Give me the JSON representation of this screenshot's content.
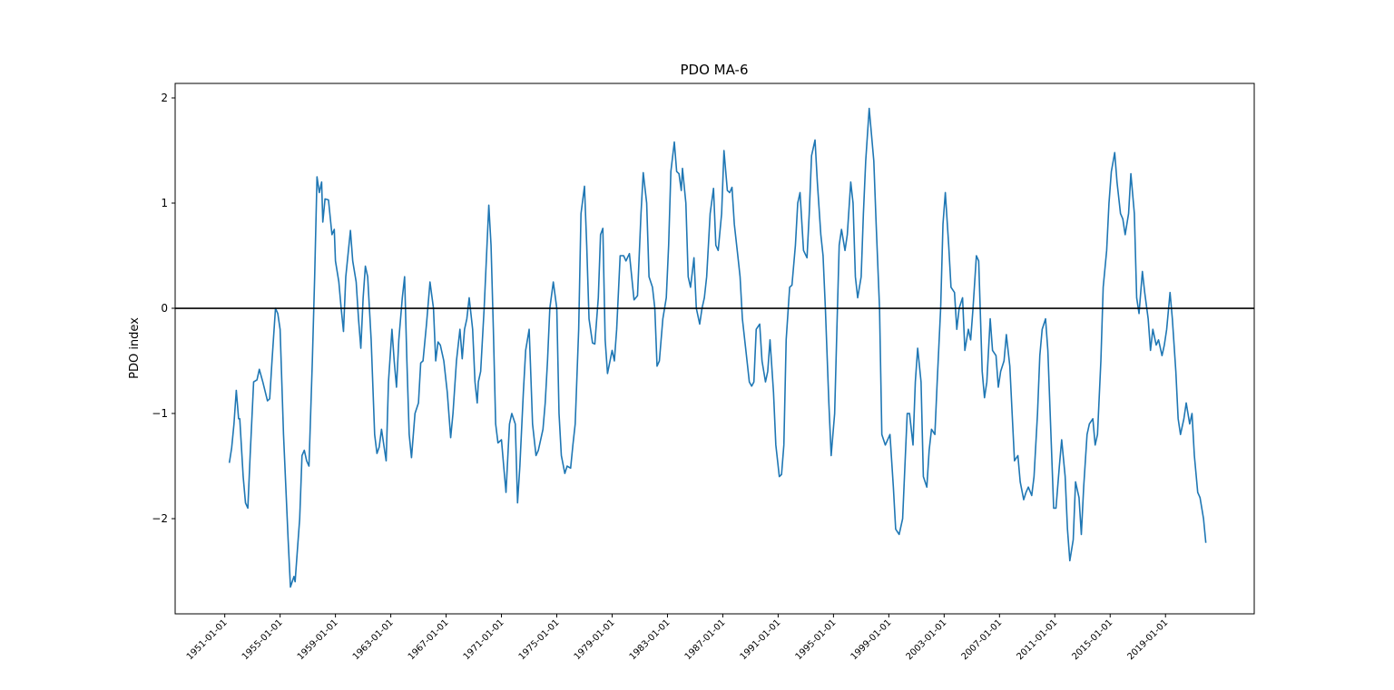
{
  "chart_data": {
    "type": "line",
    "title": "PDO MA-6",
    "y_label": "PDO index",
    "color": "#1f77b4",
    "hline": {
      "value": 0,
      "color": "#000000"
    },
    "xlim": [
      "1947-06-01",
      "2025-06-01"
    ],
    "ylim": [
      -2.905,
      2.138
    ],
    "xticks": [
      "1951-01-01",
      "1955-01-01",
      "1959-01-01",
      "1963-01-01",
      "1967-01-01",
      "1971-01-01",
      "1975-01-01",
      "1979-01-01",
      "1983-01-01",
      "1987-01-01",
      "1991-01-01",
      "1995-01-01",
      "1999-01-01",
      "2003-01-01",
      "2007-01-01",
      "2011-01-01",
      "2015-01-01",
      "2019-01-01"
    ],
    "yticks": [
      {
        "value": -2,
        "label": "−2"
      },
      {
        "value": -1,
        "label": "−1"
      },
      0,
      1,
      2
    ],
    "x": [
      "1951-05-01",
      "1951-07-01",
      "1951-09-01",
      "1951-11-01",
      "1952-01-01",
      "1952-02-01",
      "1952-05-01",
      "1952-07-01",
      "1952-09-01",
      "1952-11-01",
      "1953-02-01",
      "1953-05-01",
      "1953-07-01",
      "1953-10-01",
      "1954-02-01",
      "1954-04-01",
      "1954-06-01",
      "1954-09-01",
      "1954-11-01",
      "1955-01-01",
      "1955-04-01",
      "1955-08-01",
      "1955-10-01",
      "1956-01-01",
      "1956-02-01",
      "1956-04-01",
      "1956-06-01",
      "1956-08-01",
      "1956-10-01",
      "1956-12-01",
      "1957-02-01",
      "1957-05-01",
      "1957-07-01",
      "1957-09-01",
      "1957-11-01",
      "1958-01-01",
      "1958-02-01",
      "1958-04-01",
      "1958-07-01",
      "1958-10-01",
      "1958-12-01",
      "1959-01-01",
      "1959-04-01",
      "1959-06-01",
      "1959-08-01",
      "1959-10-01",
      "1960-02-01",
      "1960-04-01",
      "1960-07-01",
      "1960-09-01",
      "1960-11-01",
      "1961-01-01",
      "1961-03-01",
      "1961-05-01",
      "1961-08-01",
      "1961-11-01",
      "1962-01-01",
      "1962-03-01",
      "1962-05-01",
      "1962-07-01",
      "1962-09-01",
      "1962-11-01",
      "1963-02-01",
      "1963-04-01",
      "1963-06-01",
      "1963-08-01",
      "1963-11-01",
      "1964-01-01",
      "1964-03-01",
      "1964-05-01",
      "1964-07-01",
      "1964-10-01",
      "1965-01-01",
      "1965-03-01",
      "1965-05-01",
      "1965-08-01",
      "1965-11-01",
      "1966-02-01",
      "1966-04-01",
      "1966-06-01",
      "1966-08-01",
      "1966-11-01",
      "1967-02-01",
      "1967-05-01",
      "1967-07-01",
      "1967-10-01",
      "1968-01-01",
      "1968-03-01",
      "1968-05-01",
      "1968-07-01",
      "1968-09-01",
      "1968-12-01",
      "1969-02-01",
      "1969-04-01",
      "1969-05-01",
      "1969-07-01",
      "1969-10-01",
      "1970-02-01",
      "1970-04-01",
      "1970-06-01",
      "1970-08-01",
      "1970-10-01",
      "1971-01-01",
      "1971-03-01",
      "1971-05-01",
      "1971-08-01",
      "1971-10-01",
      "1972-01-01",
      "1972-03-01",
      "1972-05-01",
      "1972-08-01",
      "1972-10-01",
      "1973-01-01",
      "1973-02-01",
      "1973-04-01",
      "1973-07-01",
      "1973-09-01",
      "1974-01-01",
      "1974-03-01",
      "1974-05-01",
      "1974-07-01",
      "1974-10-01",
      "1975-01-01",
      "1975-03-01",
      "1975-05-01",
      "1975-08-01",
      "1975-10-01",
      "1976-01-01",
      "1976-03-01",
      "1976-05-01",
      "1976-08-01",
      "1976-10-01",
      "1977-01-01",
      "1977-03-01",
      "1977-05-01",
      "1977-08-01",
      "1977-10-01",
      "1978-01-01",
      "1978-03-01",
      "1978-05-01",
      "1978-07-01",
      "1978-09-01",
      "1979-01-01",
      "1979-03-01",
      "1979-05-01",
      "1979-08-01",
      "1979-11-01",
      "1980-01-01",
      "1980-04-01",
      "1980-06-01",
      "1980-08-01",
      "1980-11-01",
      "1981-02-01",
      "1981-04-01",
      "1981-07-01",
      "1981-09-01",
      "1981-12-01",
      "1982-02-01",
      "1982-04-01",
      "1982-06-01",
      "1982-09-01",
      "1982-12-01",
      "1983-02-01",
      "1983-04-01",
      "1983-07-01",
      "1983-09-01",
      "1983-11-01",
      "1984-01-01",
      "1984-02-01",
      "1984-05-01",
      "1984-07-01",
      "1984-09-01",
      "1984-12-01",
      "1985-02-01",
      "1985-05-01",
      "1985-07-01",
      "1985-09-01",
      "1985-11-01",
      "1986-02-01",
      "1986-05-01",
      "1986-07-01",
      "1986-09-01",
      "1986-12-01",
      "1987-02-01",
      "1987-05-01",
      "1987-07-01",
      "1987-09-01",
      "1987-11-01",
      "1988-02-01",
      "1988-04-01",
      "1988-06-01",
      "1988-09-01",
      "1988-12-01",
      "1989-02-01",
      "1989-04-01",
      "1989-06-01",
      "1989-09-01",
      "1989-11-01",
      "1990-02-01",
      "1990-04-01",
      "1990-06-01",
      "1990-09-01",
      "1990-11-01",
      "1991-02-01",
      "1991-04-01",
      "1991-06-01",
      "1991-08-01",
      "1991-11-01",
      "1992-01-01",
      "1992-04-01",
      "1992-06-01",
      "1992-08-01",
      "1992-11-01",
      "1993-02-01",
      "1993-04-01",
      "1993-06-01",
      "1993-09-01",
      "1993-11-01",
      "1994-02-01",
      "1994-04-01",
      "1994-06-01",
      "1994-09-01",
      "1994-11-01",
      "1995-02-01",
      "1995-04-01",
      "1995-06-01",
      "1995-08-01",
      "1995-11-01",
      "1996-01-01",
      "1996-04-01",
      "1996-06-01",
      "1996-08-01",
      "1996-10-01",
      "1997-01-01",
      "1997-03-01",
      "1997-05-01",
      "1997-08-01",
      "1997-10-01",
      "1997-12-01",
      "1998-02-01",
      "1998-05-01",
      "1998-07-01",
      "1998-10-01",
      "1998-12-01",
      "1999-02-01",
      "1999-05-01",
      "1999-07-01",
      "1999-10-01",
      "2000-01-01",
      "2000-03-01",
      "2000-05-01",
      "2000-07-01",
      "2000-10-01",
      "2000-12-01",
      "2001-02-01",
      "2001-05-01",
      "2001-07-01",
      "2001-10-01",
      "2001-12-01",
      "2002-02-01",
      "2002-05-01",
      "2002-07-01",
      "2002-10-01",
      "2002-12-01",
      "2003-02-01",
      "2003-05-01",
      "2003-07-01",
      "2003-10-01",
      "2003-12-01",
      "2004-02-01",
      "2004-05-01",
      "2004-07-01",
      "2004-10-01",
      "2004-12-01",
      "2005-02-01",
      "2005-05-01",
      "2005-07-01",
      "2005-10-01",
      "2005-12-01",
      "2006-02-01",
      "2006-05-01",
      "2006-07-01",
      "2006-10-01",
      "2006-12-01",
      "2007-02-01",
      "2007-05-01",
      "2007-07-01",
      "2007-10-01",
      "2007-12-01",
      "2008-02-01",
      "2008-05-01",
      "2008-07-01",
      "2008-10-01",
      "2008-12-01",
      "2009-02-01",
      "2009-05-01",
      "2009-07-01",
      "2009-10-01",
      "2009-12-01",
      "2010-02-01",
      "2010-05-01",
      "2010-07-01",
      "2010-10-01",
      "2010-12-01",
      "2011-02-01",
      "2011-05-01",
      "2011-07-01",
      "2011-10-01",
      "2011-12-01",
      "2012-02-01",
      "2012-05-01",
      "2012-07-01",
      "2012-10-01",
      "2012-12-01",
      "2013-02-01",
      "2013-05-01",
      "2013-07-01",
      "2013-10-01",
      "2013-12-01",
      "2014-02-01",
      "2014-05-01",
      "2014-07-01",
      "2014-10-01",
      "2014-12-01",
      "2015-02-01",
      "2015-05-01",
      "2015-07-01",
      "2015-10-01",
      "2015-12-01",
      "2016-02-01",
      "2016-05-01",
      "2016-07-01",
      "2016-10-01",
      "2016-12-01",
      "2017-02-01",
      "2017-05-01",
      "2017-07-01",
      "2017-10-01",
      "2017-12-01",
      "2018-02-01",
      "2018-05-01",
      "2018-07-01",
      "2018-10-01",
      "2018-12-01",
      "2019-02-01",
      "2019-05-01",
      "2019-07-01",
      "2019-10-01",
      "2019-12-01",
      "2020-02-01",
      "2020-05-01",
      "2020-07-01",
      "2020-10-01",
      "2020-12-01",
      "2021-02-01",
      "2021-05-01",
      "2021-07-01",
      "2021-10-01",
      "2021-12-01"
    ],
    "values": [
      -1.47,
      -1.33,
      -1.1,
      -0.78,
      -1.05,
      -1.05,
      -1.6,
      -1.85,
      -1.9,
      -1.4,
      -0.7,
      -0.68,
      -0.58,
      -0.7,
      -0.88,
      -0.86,
      -0.5,
      0.0,
      -0.05,
      -0.2,
      -1.2,
      -2.2,
      -2.65,
      -2.55,
      -2.6,
      -2.3,
      -2.0,
      -1.4,
      -1.35,
      -1.45,
      -1.5,
      -0.5,
      0.3,
      1.25,
      1.1,
      1.2,
      0.82,
      1.04,
      1.03,
      0.7,
      0.75,
      0.45,
      0.25,
      0.0,
      -0.22,
      0.3,
      0.74,
      0.45,
      0.25,
      -0.1,
      -0.38,
      0.1,
      0.4,
      0.3,
      -0.3,
      -1.2,
      -1.38,
      -1.32,
      -1.15,
      -1.3,
      -1.45,
      -0.7,
      -0.2,
      -0.5,
      -0.75,
      -0.3,
      0.1,
      0.3,
      -0.5,
      -1.2,
      -1.42,
      -1.0,
      -0.9,
      -0.52,
      -0.5,
      -0.15,
      0.25,
      0.0,
      -0.5,
      -0.32,
      -0.35,
      -0.5,
      -0.8,
      -1.23,
      -1.0,
      -0.5,
      -0.2,
      -0.48,
      -0.2,
      -0.1,
      0.1,
      -0.2,
      -0.7,
      -0.9,
      -0.7,
      -0.6,
      0.0,
      0.98,
      0.6,
      -0.2,
      -1.1,
      -1.28,
      -1.25,
      -1.5,
      -1.75,
      -1.1,
      -1.0,
      -1.1,
      -1.85,
      -1.5,
      -0.8,
      -0.4,
      -0.2,
      -0.5,
      -1.1,
      -1.4,
      -1.35,
      -1.15,
      -0.9,
      -0.5,
      0.0,
      0.25,
      0.0,
      -1.0,
      -1.4,
      -1.57,
      -1.5,
      -1.52,
      -1.3,
      -1.1,
      -0.2,
      0.9,
      1.16,
      0.6,
      -0.1,
      -0.33,
      -0.34,
      0.1,
      0.7,
      0.76,
      -0.3,
      -0.62,
      -0.4,
      -0.5,
      -0.2,
      0.5,
      0.5,
      0.45,
      0.52,
      0.3,
      0.08,
      0.12,
      0.9,
      1.29,
      1.0,
      0.3,
      0.2,
      0.0,
      -0.55,
      -0.5,
      -0.1,
      0.1,
      0.6,
      1.3,
      1.58,
      1.3,
      1.28,
      1.12,
      1.33,
      1.0,
      0.3,
      0.2,
      0.48,
      0.0,
      -0.15,
      0.0,
      0.1,
      0.3,
      0.9,
      1.14,
      0.6,
      0.55,
      0.9,
      1.5,
      1.12,
      1.1,
      1.15,
      0.8,
      0.5,
      0.3,
      -0.1,
      -0.4,
      -0.7,
      -0.74,
      -0.7,
      -0.2,
      -0.15,
      -0.5,
      -0.7,
      -0.6,
      -0.3,
      -0.8,
      -1.3,
      -1.6,
      -1.58,
      -1.3,
      -0.3,
      0.2,
      0.22,
      0.6,
      1.0,
      1.1,
      0.55,
      0.48,
      0.9,
      1.45,
      1.6,
      1.2,
      0.7,
      0.5,
      0.0,
      -0.9,
      -1.4,
      -1.0,
      -0.2,
      0.6,
      0.75,
      0.55,
      0.7,
      1.2,
      1.0,
      0.3,
      0.1,
      0.3,
      0.9,
      1.4,
      1.9,
      1.65,
      1.4,
      0.8,
      0.0,
      -1.2,
      -1.3,
      -1.25,
      -1.2,
      -1.7,
      -2.1,
      -2.15,
      -2.0,
      -1.5,
      -1.0,
      -1.0,
      -1.3,
      -0.7,
      -0.38,
      -0.7,
      -1.6,
      -1.7,
      -1.35,
      -1.15,
      -1.2,
      -0.7,
      0.0,
      0.8,
      1.1,
      0.6,
      0.2,
      0.15,
      -0.2,
      0.0,
      0.1,
      -0.4,
      -0.2,
      -0.3,
      0.0,
      0.5,
      0.45,
      -0.6,
      -0.85,
      -0.7,
      -0.1,
      -0.4,
      -0.45,
      -0.75,
      -0.6,
      -0.5,
      -0.25,
      -0.55,
      -1.0,
      -1.45,
      -1.4,
      -1.65,
      -1.82,
      -1.75,
      -1.7,
      -1.78,
      -1.6,
      -1.0,
      -0.45,
      -0.2,
      -0.1,
      -0.4,
      -1.3,
      -1.9,
      -1.9,
      -1.5,
      -1.25,
      -1.6,
      -2.1,
      -2.4,
      -2.2,
      -1.65,
      -1.8,
      -2.15,
      -1.7,
      -1.2,
      -1.1,
      -1.05,
      -1.3,
      -1.2,
      -0.5,
      0.2,
      0.55,
      1.0,
      1.3,
      1.48,
      1.2,
      0.9,
      0.85,
      0.7,
      0.9,
      1.28,
      0.9,
      0.1,
      -0.05,
      0.35,
      0.15,
      -0.1,
      -0.4,
      -0.2,
      -0.35,
      -0.3,
      -0.45,
      -0.35,
      -0.2,
      0.15,
      -0.1,
      -0.6,
      -1.05,
      -1.2,
      -1.05,
      -0.9,
      -1.1,
      -1.0,
      -1.4,
      -1.75,
      -1.8,
      -2.0,
      -2.23
    ]
  }
}
